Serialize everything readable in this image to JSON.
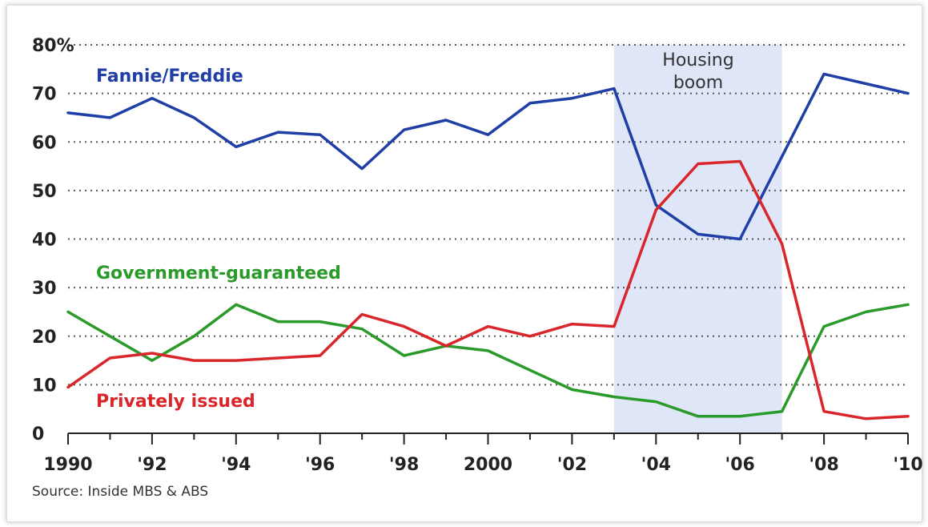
{
  "chart_data": {
    "type": "line",
    "title": "",
    "xlabel": "",
    "ylabel": "",
    "x": [
      1990,
      1991,
      1992,
      1993,
      1994,
      1995,
      1996,
      1997,
      1998,
      1999,
      2000,
      2001,
      2002,
      2003,
      2004,
      2005,
      2006,
      2007,
      2008,
      2009,
      2010
    ],
    "xlim": [
      1990,
      2010
    ],
    "ylim": [
      0,
      80
    ],
    "y_ticks": [
      0,
      10,
      20,
      30,
      40,
      50,
      60,
      70,
      80
    ],
    "y_tick_labels": [
      "0",
      "10",
      "20",
      "30",
      "40",
      "50",
      "60",
      "70",
      "80%"
    ],
    "x_ticks": [
      1990,
      1992,
      1994,
      1996,
      1998,
      2000,
      2002,
      2004,
      2006,
      2008,
      2010
    ],
    "x_tick_labels": [
      "1990",
      "'92",
      "'94",
      "'96",
      "'98",
      "2000",
      "'02",
      "'04",
      "'06",
      "'08",
      "'10"
    ],
    "grid": "horizontal-dotted",
    "shaded_region": {
      "x_start": 2003,
      "x_end": 2007,
      "label_line1": "Housing",
      "label_line2": "boom",
      "color": "#dfe6f8"
    },
    "series": [
      {
        "name": "Fannie/Freddie",
        "color": "#1f3fa6",
        "values": [
          66,
          65,
          69,
          65,
          59,
          62,
          61.5,
          54.5,
          62.5,
          64.5,
          61.5,
          68,
          69,
          71,
          47,
          41,
          40,
          57,
          74,
          72,
          70
        ]
      },
      {
        "name": "Government-guaranteed",
        "color": "#2a9a2a",
        "values": [
          25,
          20,
          15,
          20,
          26.5,
          23,
          23,
          21.5,
          16,
          18,
          17,
          13,
          9,
          7.5,
          6.5,
          3.5,
          3.5,
          4.5,
          22,
          25,
          26.5
        ]
      },
      {
        "name": "Privately issued",
        "color": "#d9262a",
        "values": [
          9.5,
          15.5,
          16.5,
          15,
          15,
          15.5,
          16,
          24.5,
          22,
          18,
          22,
          20,
          22.5,
          22,
          46,
          55.5,
          56,
          39,
          4.5,
          3,
          3.5
        ]
      }
    ],
    "annotations": {
      "source": "Source: Inside MBS & ABS"
    }
  }
}
